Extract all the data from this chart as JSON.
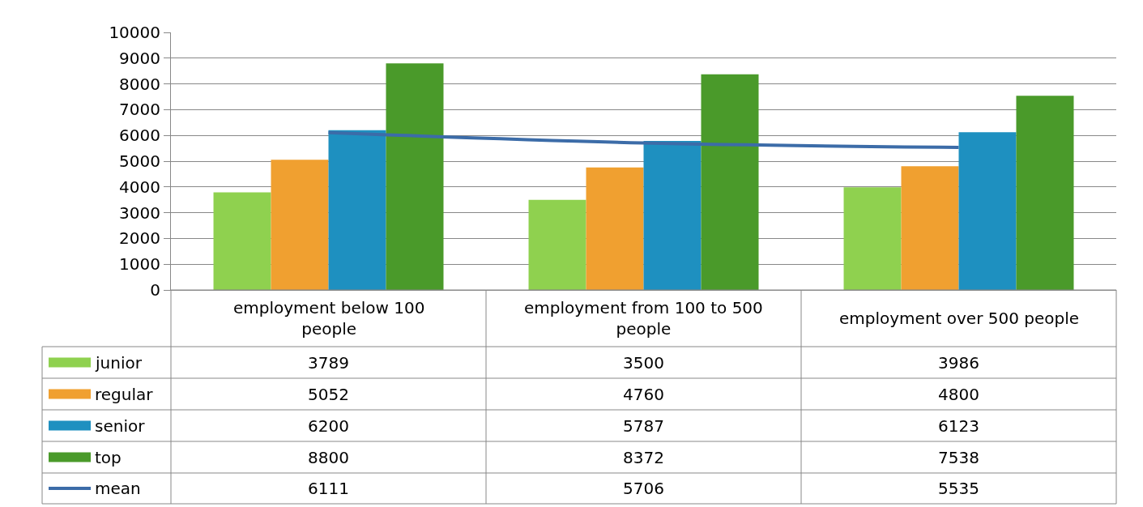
{
  "chart_data": {
    "type": "bar",
    "categories": [
      "employment below 100 people",
      "employment from 100 to 500 people",
      "employment over 500 people"
    ],
    "series": [
      {
        "name": "junior",
        "color": "#8fd14f",
        "values": [
          3789,
          3500,
          3986
        ]
      },
      {
        "name": "regular",
        "color": "#f0a030",
        "values": [
          5052,
          4760,
          4800
        ]
      },
      {
        "name": "senior",
        "color": "#1e90c0",
        "values": [
          6200,
          5787,
          6123
        ]
      },
      {
        "name": "top",
        "color": "#4a9a2a",
        "values": [
          8800,
          8372,
          7538
        ]
      },
      {
        "name": "mean",
        "type": "line",
        "color": "#3c6ca8",
        "marker": "none",
        "values": [
          6111,
          5706,
          5535
        ]
      }
    ],
    "ylim": [
      0,
      10000
    ],
    "yticks": [
      0,
      1000,
      2000,
      3000,
      4000,
      5000,
      6000,
      7000,
      8000,
      9000,
      10000
    ],
    "grid": "y",
    "data_labels": true,
    "legend": "bottom left"
  }
}
